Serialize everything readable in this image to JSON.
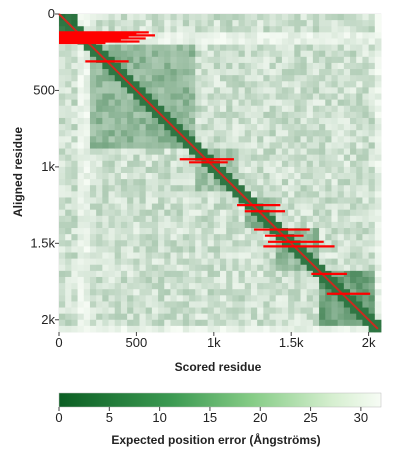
{
  "chart_data": {
    "type": "heatmap",
    "title": "",
    "xlabel": "Scored residue",
    "ylabel": "Aligned residue",
    "xlim": [
      0,
      2080
    ],
    "ylim": [
      0,
      2080
    ],
    "x_ticks": [
      {
        "value": 0,
        "label": "0"
      },
      {
        "value": 500,
        "label": "500"
      },
      {
        "value": 1000,
        "label": "1k"
      },
      {
        "value": 1500,
        "label": "1.5k"
      },
      {
        "value": 2000,
        "label": "2k"
      }
    ],
    "y_ticks": [
      {
        "value": 0,
        "label": "0"
      },
      {
        "value": 500,
        "label": "500"
      },
      {
        "value": 1000,
        "label": "1k"
      },
      {
        "value": 1500,
        "label": "1.5k"
      },
      {
        "value": 2000,
        "label": "2k"
      }
    ],
    "colorbar": {
      "label": "Expected position error (Ångströms)",
      "range": [
        0,
        32
      ],
      "ticks": [
        0,
        5,
        10,
        15,
        20,
        25,
        30
      ],
      "color_low": "#0b5e23",
      "color_high": "#f7fcf5"
    },
    "blocks": [
      {
        "start": 0,
        "end": 120,
        "error": 2
      },
      {
        "start": 220,
        "end": 900,
        "error": 12
      },
      {
        "start": 900,
        "end": 1150,
        "error": 14
      },
      {
        "start": 1150,
        "end": 1220,
        "error": 16
      },
      {
        "start": 1220,
        "end": 1400,
        "error": 11
      },
      {
        "start": 1400,
        "end": 1700,
        "error": 12
      },
      {
        "start": 1700,
        "end": 2040,
        "error": 7
      }
    ],
    "diagonal_color": "#cc2a1f",
    "error_bar_color": "#ff0000",
    "error_bars": [
      {
        "y": 120,
        "x0": 0,
        "x1": 580
      },
      {
        "y": 130,
        "x0": 0,
        "x1": 500
      },
      {
        "y": 140,
        "x0": 0,
        "x1": 620
      },
      {
        "y": 150,
        "x0": 0,
        "x1": 450
      },
      {
        "y": 160,
        "x0": 0,
        "x1": 560
      },
      {
        "y": 170,
        "x0": 0,
        "x1": 400
      },
      {
        "y": 180,
        "x0": 0,
        "x1": 520
      },
      {
        "y": 190,
        "x0": 0,
        "x1": 300
      },
      {
        "y": 310,
        "x0": 170,
        "x1": 450
      },
      {
        "y": 950,
        "x0": 780,
        "x1": 1130
      },
      {
        "y": 970,
        "x0": 840,
        "x1": 1090
      },
      {
        "y": 1250,
        "x0": 1150,
        "x1": 1430
      },
      {
        "y": 1290,
        "x0": 1200,
        "x1": 1460
      },
      {
        "y": 1410,
        "x0": 1260,
        "x1": 1620
      },
      {
        "y": 1450,
        "x0": 1330,
        "x1": 1580
      },
      {
        "y": 1490,
        "x0": 1350,
        "x1": 1710
      },
      {
        "y": 1520,
        "x0": 1320,
        "x1": 1780
      },
      {
        "y": 1700,
        "x0": 1630,
        "x1": 1860
      },
      {
        "y": 1830,
        "x0": 1730,
        "x1": 2010
      }
    ]
  }
}
